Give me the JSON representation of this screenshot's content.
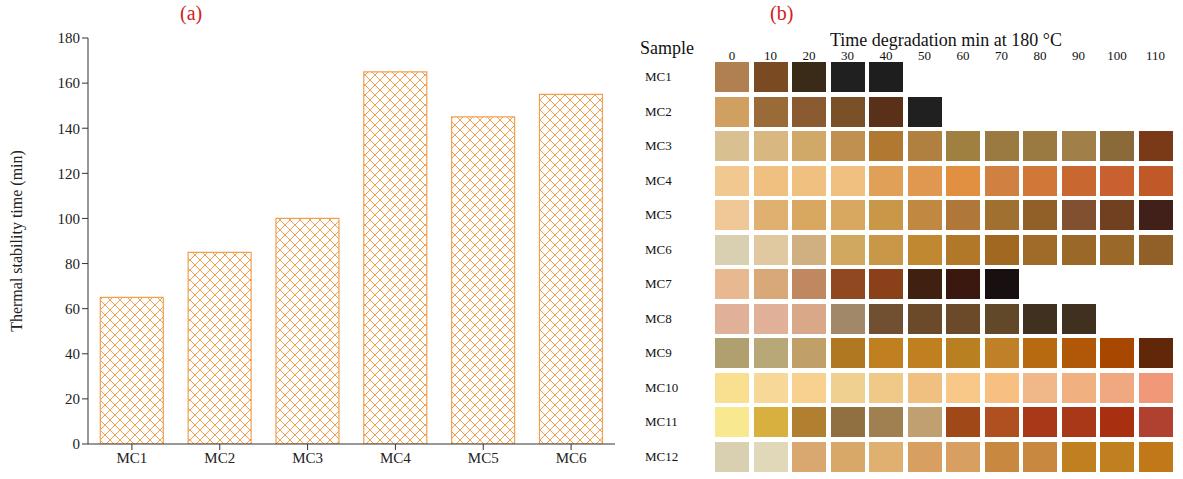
{
  "chart_data": [
    {
      "type": "bar",
      "panel": "(a)",
      "ylabel": "Thermal stability time (min)",
      "categories": [
        "MC1",
        "MC2",
        "MC3",
        "MC4",
        "MC5",
        "MC6"
      ],
      "values": [
        65,
        85,
        100,
        165,
        145,
        155
      ],
      "color": "#f0a050",
      "ylim": [
        0,
        180
      ],
      "yticks": [
        0,
        20,
        40,
        60,
        80,
        100,
        120,
        140,
        160,
        180
      ],
      "grid": false
    },
    {
      "type": "swatch_grid",
      "panel": "(b)",
      "title": "Time degradation min at 180 °C",
      "ylabel": "Sample",
      "categories": [
        0,
        10,
        20,
        30,
        40,
        50,
        60,
        70,
        80,
        90,
        100,
        110
      ],
      "rows": [
        "MC1",
        "MC2",
        "MC3",
        "MC4",
        "MC5",
        "MC6",
        "MC7",
        "MC8",
        "MC9",
        "MC10",
        "MC11",
        "MC12"
      ],
      "colors": [
        [
          "#b08050",
          "#7a4a22",
          "#3a2a18",
          "#202020",
          "#1e1e1e",
          null,
          null,
          null,
          null,
          null,
          null,
          null
        ],
        [
          "#d0a060",
          "#9a6a38",
          "#8a5a30",
          "#7a5028",
          "#5a3018",
          "#202020",
          null,
          null,
          null,
          null,
          null,
          null
        ],
        [
          "#d8c090",
          "#d8b880",
          "#d0a868",
          "#c09050",
          "#b07830",
          "#b08040",
          "#a08040",
          "#9a7a40",
          "#9a7a40",
          "#a08048",
          "#8a6a38",
          "#7a3a18"
        ],
        [
          "#f0c890",
          "#f0c080",
          "#f0c080",
          "#f0c080",
          "#e0a058",
          "#e09850",
          "#e09040",
          "#d08040",
          "#d07838",
          "#c86830",
          "#c86030",
          "#c05828"
        ],
        [
          "#f0c898",
          "#e0b070",
          "#d8a860",
          "#d8a860",
          "#c89848",
          "#c08840",
          "#b07838",
          "#a07030",
          "#906028",
          "#805030",
          "#704020",
          "#402018"
        ],
        [
          "#d8d0b0",
          "#e0c8a0",
          "#d0b080",
          "#d0a860",
          "#c89848",
          "#c08830",
          "#b07828",
          "#a06820",
          "#a06a28",
          "#9a6828",
          "#9a6828",
          "#906028"
        ],
        [
          "#e8b890",
          "#d8a878",
          "#c08860",
          "#904820",
          "#8a4018",
          "#402010",
          "#3a1810",
          "#181010",
          null,
          null,
          null,
          null
        ],
        [
          "#e0b098",
          "#e0b098",
          "#d8a888",
          "#a08868",
          "#705030",
          "#6a4a28",
          "#6a4a28",
          "#604828",
          "#403020",
          "#403020",
          null,
          null
        ],
        [
          "#b0a070",
          "#b8a878",
          "#c0a068",
          "#b07820",
          "#c08020",
          "#c08020",
          "#b88020",
          "#c08028",
          "#b86a10",
          "#b05808",
          "#a84800",
          "#602808"
        ],
        [
          "#f8e090",
          "#f8d898",
          "#f8d090",
          "#f0d090",
          "#f0c888",
          "#f0c080",
          "#f8c888",
          "#f8c080",
          "#f0b888",
          "#f0b080",
          "#f0a880",
          "#f09878"
        ],
        [
          "#f8e890",
          "#d8b040",
          "#b08030",
          "#907040",
          "#a08050",
          "#c0a070",
          "#a04818",
          "#b05020",
          "#a83818",
          "#a83818",
          "#a83010",
          "#b04030"
        ],
        [
          "#d8d0b0",
          "#e0d8b8",
          "#d8a870",
          "#d8a868",
          "#e0b070",
          "#d8a060",
          "#d8a060",
          "#c88840",
          "#c88840",
          "#c08020",
          "#c08020",
          "#c07818"
        ]
      ]
    }
  ]
}
